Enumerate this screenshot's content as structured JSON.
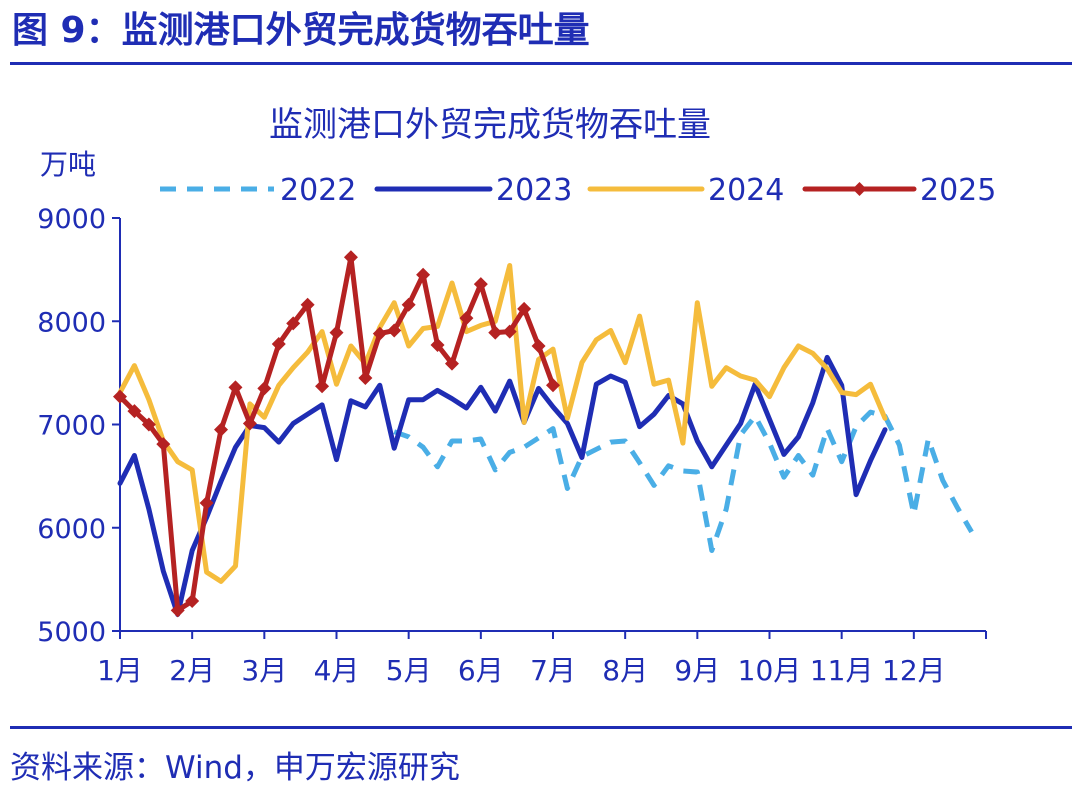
{
  "figure": {
    "header": "图 9：监测港口外贸完成货物吞吐量",
    "source": "资料来源：Wind，申万宏源研究"
  },
  "colors": {
    "text": "#1f2db4",
    "axis": "#1f2db4",
    "s2022": "#4aaee6",
    "s2023": "#1f2db4",
    "s2024": "#f5bc3c",
    "s2025": "#b52222"
  },
  "chart_data": {
    "type": "line",
    "title": "监测港口外贸完成货物吞吐量",
    "ylabel": "万吨",
    "ylim": [
      5000,
      9000
    ],
    "yticks": [
      5000,
      6000,
      7000,
      8000,
      9000
    ],
    "xlim": [
      0,
      60
    ],
    "xlabel": "",
    "xticks": [
      {
        "label": "1月",
        "x": 0
      },
      {
        "label": "2月",
        "x": 5
      },
      {
        "label": "3月",
        "x": 10
      },
      {
        "label": "4月",
        "x": 15
      },
      {
        "label": "5月",
        "x": 20
      },
      {
        "label": "6月",
        "x": 25
      },
      {
        "label": "7月",
        "x": 30
      },
      {
        "label": "8月",
        "x": 35
      },
      {
        "label": "9月",
        "x": 40
      },
      {
        "label": "10月",
        "x": 45
      },
      {
        "label": "11月",
        "x": 50
      },
      {
        "label": "12月",
        "x": 55
      }
    ],
    "grid": false,
    "legend_position": "top",
    "series": [
      {
        "name": "2022",
        "style": "dashed",
        "color": "#4aaee6",
        "points": [
          [
            19,
            6930
          ],
          [
            20,
            6880
          ],
          [
            21,
            6780
          ],
          [
            22,
            6590
          ],
          [
            23,
            6840
          ],
          [
            24,
            6840
          ],
          [
            25,
            6860
          ],
          [
            26,
            6560
          ],
          [
            27,
            6730
          ],
          [
            28,
            6780
          ],
          [
            29,
            6870
          ],
          [
            30,
            6960
          ],
          [
            31,
            6380
          ],
          [
            32,
            6690
          ],
          [
            33,
            6760
          ],
          [
            34,
            6830
          ],
          [
            35,
            6840
          ],
          [
            36,
            6630
          ],
          [
            37,
            6410
          ],
          [
            38,
            6600
          ],
          [
            39,
            6550
          ],
          [
            40,
            6540
          ],
          [
            41,
            5780
          ],
          [
            42,
            6180
          ],
          [
            43,
            6900
          ],
          [
            44,
            7080
          ],
          [
            45,
            6820
          ],
          [
            46,
            6490
          ],
          [
            47,
            6700
          ],
          [
            48,
            6510
          ],
          [
            49,
            6960
          ],
          [
            50,
            6640
          ],
          [
            51,
            6980
          ],
          [
            52,
            7120
          ],
          [
            53,
            7080
          ],
          [
            54,
            6800
          ],
          [
            55,
            6130
          ],
          [
            56,
            6860
          ],
          [
            57,
            6460
          ],
          [
            58,
            6200
          ],
          [
            59,
            5960
          ]
        ]
      },
      {
        "name": "2023",
        "style": "solid",
        "color": "#1f2db4",
        "points": [
          [
            0,
            6430
          ],
          [
            1,
            6700
          ],
          [
            2,
            6180
          ],
          [
            3,
            5580
          ],
          [
            4,
            5160
          ],
          [
            5,
            5780
          ],
          [
            6,
            6100
          ],
          [
            7,
            6450
          ],
          [
            8,
            6780
          ],
          [
            9,
            6990
          ],
          [
            10,
            6970
          ],
          [
            11,
            6830
          ],
          [
            12,
            7010
          ],
          [
            13,
            7100
          ],
          [
            14,
            7190
          ],
          [
            15,
            6660
          ],
          [
            16,
            7230
          ],
          [
            17,
            7170
          ],
          [
            18,
            7380
          ],
          [
            19,
            6770
          ],
          [
            20,
            7240
          ],
          [
            21,
            7240
          ],
          [
            22,
            7330
          ],
          [
            23,
            7250
          ],
          [
            24,
            7160
          ],
          [
            25,
            7360
          ],
          [
            26,
            7130
          ],
          [
            27,
            7420
          ],
          [
            28,
            7020
          ],
          [
            29,
            7350
          ],
          [
            30,
            7170
          ],
          [
            31,
            7010
          ],
          [
            32,
            6680
          ],
          [
            33,
            7390
          ],
          [
            34,
            7470
          ],
          [
            35,
            7410
          ],
          [
            36,
            6980
          ],
          [
            37,
            7100
          ],
          [
            38,
            7280
          ],
          [
            39,
            7200
          ],
          [
            40,
            6840
          ],
          [
            41,
            6590
          ],
          [
            42,
            6800
          ],
          [
            43,
            7010
          ],
          [
            44,
            7390
          ],
          [
            45,
            7050
          ],
          [
            46,
            6710
          ],
          [
            47,
            6880
          ],
          [
            48,
            7210
          ],
          [
            49,
            7650
          ],
          [
            50,
            7380
          ],
          [
            51,
            6320
          ],
          [
            52,
            6650
          ],
          [
            53,
            6950
          ]
        ]
      },
      {
        "name": "2024",
        "style": "solid",
        "color": "#f5bc3c",
        "points": [
          [
            0,
            7310
          ],
          [
            1,
            7570
          ],
          [
            2,
            7240
          ],
          [
            3,
            6840
          ],
          [
            4,
            6640
          ],
          [
            5,
            6560
          ],
          [
            6,
            5570
          ],
          [
            7,
            5480
          ],
          [
            8,
            5630
          ],
          [
            9,
            7200
          ],
          [
            10,
            7070
          ],
          [
            11,
            7380
          ],
          [
            12,
            7550
          ],
          [
            13,
            7700
          ],
          [
            14,
            7900
          ],
          [
            15,
            7390
          ],
          [
            16,
            7760
          ],
          [
            17,
            7590
          ],
          [
            18,
            7940
          ],
          [
            19,
            8180
          ],
          [
            20,
            7760
          ],
          [
            21,
            7930
          ],
          [
            22,
            7950
          ],
          [
            23,
            8370
          ],
          [
            24,
            7900
          ],
          [
            25,
            7960
          ],
          [
            26,
            8000
          ],
          [
            27,
            8540
          ],
          [
            28,
            7020
          ],
          [
            29,
            7630
          ],
          [
            30,
            7730
          ],
          [
            31,
            7060
          ],
          [
            32,
            7600
          ],
          [
            33,
            7820
          ],
          [
            34,
            7910
          ],
          [
            35,
            7600
          ],
          [
            36,
            8050
          ],
          [
            37,
            7390
          ],
          [
            38,
            7430
          ],
          [
            39,
            6820
          ],
          [
            40,
            8180
          ],
          [
            41,
            7370
          ],
          [
            42,
            7550
          ],
          [
            43,
            7470
          ],
          [
            44,
            7430
          ],
          [
            45,
            7270
          ],
          [
            46,
            7550
          ],
          [
            47,
            7760
          ],
          [
            48,
            7690
          ],
          [
            49,
            7540
          ],
          [
            50,
            7310
          ],
          [
            51,
            7290
          ],
          [
            52,
            7390
          ],
          [
            53,
            7060
          ]
        ]
      },
      {
        "name": "2025",
        "style": "solid-marker",
        "color": "#b52222",
        "points": [
          [
            0,
            7270
          ],
          [
            1,
            7130
          ],
          [
            2,
            7000
          ],
          [
            3,
            6810
          ],
          [
            4,
            5200
          ],
          [
            5,
            5290
          ],
          [
            6,
            6240
          ],
          [
            7,
            6950
          ],
          [
            8,
            7360
          ],
          [
            9,
            7010
          ],
          [
            10,
            7350
          ],
          [
            11,
            7780
          ],
          [
            12,
            7980
          ],
          [
            13,
            8160
          ],
          [
            14,
            7370
          ],
          [
            15,
            7890
          ],
          [
            16,
            8620
          ],
          [
            17,
            7450
          ],
          [
            18,
            7880
          ],
          [
            19,
            7910
          ],
          [
            20,
            8160
          ],
          [
            21,
            8450
          ],
          [
            22,
            7770
          ],
          [
            23,
            7590
          ],
          [
            24,
            8030
          ],
          [
            25,
            8360
          ],
          [
            26,
            7890
          ],
          [
            27,
            7900
          ],
          [
            28,
            8120
          ],
          [
            29,
            7760
          ],
          [
            30,
            7380
          ]
        ]
      }
    ]
  }
}
